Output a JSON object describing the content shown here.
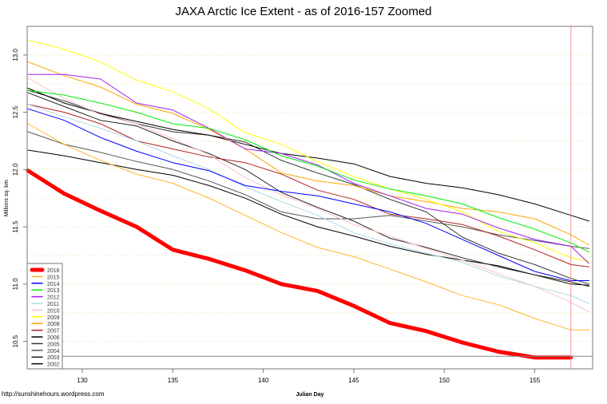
{
  "chart_data": {
    "type": "line",
    "title": "JAXA Arctic Ice Extent - as of 2016-157 Zoomed",
    "xlabel": "Julian Day",
    "ylabel": "Millions sq. km.",
    "source": "http://sunshinehours.wordpress.com",
    "xlim": [
      126.95,
      158.2
    ],
    "ylim": [
      10.26,
      13.25
    ],
    "xticks": [
      130,
      135,
      140,
      145,
      150,
      155
    ],
    "yticks": [
      10.5,
      11.0,
      11.5,
      12.0,
      12.5,
      13.0
    ],
    "ytick_labels": [
      "10.5",
      "11.0",
      "11.5",
      "12.0",
      "12.5",
      "13.0"
    ],
    "grid": true,
    "legend_position": "bottom-left",
    "reference_day": 157,
    "reference_value": 10.37,
    "x": [
      127,
      129,
      131,
      133,
      135,
      137,
      139,
      141,
      143,
      145,
      147,
      149,
      151,
      153,
      155,
      157,
      158
    ],
    "series": [
      {
        "name": "2016",
        "color": "#ff0000",
        "width": 5,
        "values": [
          11.99,
          11.79,
          11.64,
          11.5,
          11.3,
          11.22,
          11.12,
          11.0,
          10.94,
          10.81,
          10.66,
          10.59,
          10.49,
          10.41,
          10.36,
          10.36,
          null
        ]
      },
      {
        "name": "2015",
        "color": "#ffb52e",
        "width": 1,
        "values": [
          12.4,
          12.22,
          12.08,
          11.96,
          11.88,
          11.75,
          11.6,
          11.45,
          11.32,
          11.24,
          11.13,
          11.02,
          10.9,
          10.82,
          10.7,
          10.6,
          10.6
        ]
      },
      {
        "name": "2014",
        "color": "#0000ff",
        "width": 1,
        "values": [
          12.53,
          12.43,
          12.28,
          12.16,
          12.06,
          11.99,
          11.86,
          11.81,
          11.77,
          11.7,
          11.63,
          11.53,
          11.39,
          11.25,
          11.11,
          11.03,
          11.03
        ]
      },
      {
        "name": "2013",
        "color": "#00ee00",
        "width": 1,
        "values": [
          12.69,
          12.65,
          12.58,
          12.5,
          12.4,
          12.36,
          12.26,
          12.12,
          12.03,
          11.91,
          11.83,
          11.77,
          11.7,
          11.58,
          11.48,
          11.36,
          11.28
        ]
      },
      {
        "name": "2012",
        "color": "#a020f0",
        "width": 1,
        "values": [
          12.83,
          12.83,
          12.79,
          12.58,
          12.52,
          12.36,
          12.18,
          12.14,
          12.04,
          11.88,
          11.77,
          11.66,
          11.61,
          11.49,
          11.39,
          11.33,
          11.18
        ]
      },
      {
        "name": "2011",
        "color": "#add8e6",
        "width": 1,
        "values": [
          12.57,
          12.46,
          12.36,
          12.25,
          12.12,
          12.0,
          11.85,
          11.72,
          11.6,
          11.45,
          11.35,
          11.27,
          11.19,
          11.07,
          10.98,
          10.9,
          10.83
        ]
      },
      {
        "name": "2010",
        "color": "#ffc0cb",
        "width": 1,
        "values": [
          12.8,
          12.62,
          12.48,
          12.4,
          12.27,
          12.13,
          11.93,
          11.78,
          11.66,
          11.52,
          11.42,
          11.31,
          11.21,
          11.09,
          10.98,
          10.84,
          10.76
        ]
      },
      {
        "name": "2009",
        "color": "#ffff00",
        "width": 1,
        "values": [
          13.13,
          13.05,
          12.94,
          12.78,
          12.68,
          12.53,
          12.32,
          12.22,
          12.07,
          11.94,
          11.83,
          11.74,
          11.63,
          11.46,
          11.36,
          11.23,
          11.2
        ]
      },
      {
        "name": "2008",
        "color": "#ffa500",
        "width": 1,
        "values": [
          12.94,
          12.82,
          12.72,
          12.57,
          12.49,
          12.35,
          12.18,
          11.97,
          11.9,
          11.86,
          11.77,
          11.72,
          11.66,
          11.63,
          11.57,
          11.43,
          11.34
        ]
      },
      {
        "name": "2007",
        "color": "#b22222",
        "width": 1,
        "values": [
          12.57,
          12.5,
          12.4,
          12.25,
          12.18,
          12.11,
          12.06,
          11.96,
          11.82,
          11.74,
          11.61,
          11.57,
          11.52,
          11.42,
          11.3,
          11.17,
          11.15
        ]
      },
      {
        "name": "2006",
        "color": "#000000",
        "width": 1,
        "values": [
          12.71,
          12.58,
          12.49,
          12.42,
          12.35,
          12.3,
          12.22,
          12.14,
          12.1,
          12.05,
          11.94,
          11.88,
          11.84,
          11.78,
          11.7,
          11.6,
          11.55
        ]
      },
      {
        "name": "2005",
        "color": "#333333",
        "width": 1,
        "values": [
          12.69,
          12.6,
          12.49,
          12.4,
          12.33,
          12.3,
          12.24,
          12.08,
          11.97,
          11.87,
          11.74,
          11.63,
          11.41,
          11.27,
          11.17,
          11.05,
          11.0
        ]
      },
      {
        "name": "2004",
        "color": "#555555",
        "width": 1,
        "values": [
          12.33,
          12.22,
          12.15,
          12.07,
          12.0,
          11.9,
          11.78,
          11.63,
          11.57,
          11.57,
          11.6,
          11.55,
          11.5,
          11.43,
          11.38,
          11.33,
          11.31
        ]
      },
      {
        "name": "2003",
        "color": "#222222",
        "width": 1,
        "values": [
          12.67,
          12.55,
          12.43,
          12.38,
          12.25,
          12.14,
          12.0,
          11.8,
          11.67,
          11.55,
          11.4,
          11.32,
          11.23,
          11.15,
          11.08,
          11.02,
          10.98
        ]
      },
      {
        "name": "2002",
        "color": "#000000",
        "width": 1,
        "values": [
          12.17,
          12.12,
          12.06,
          12.0,
          11.95,
          11.86,
          11.75,
          11.61,
          11.5,
          11.42,
          11.33,
          11.26,
          11.21,
          11.16,
          11.08,
          11.0,
          10.99
        ]
      }
    ]
  }
}
